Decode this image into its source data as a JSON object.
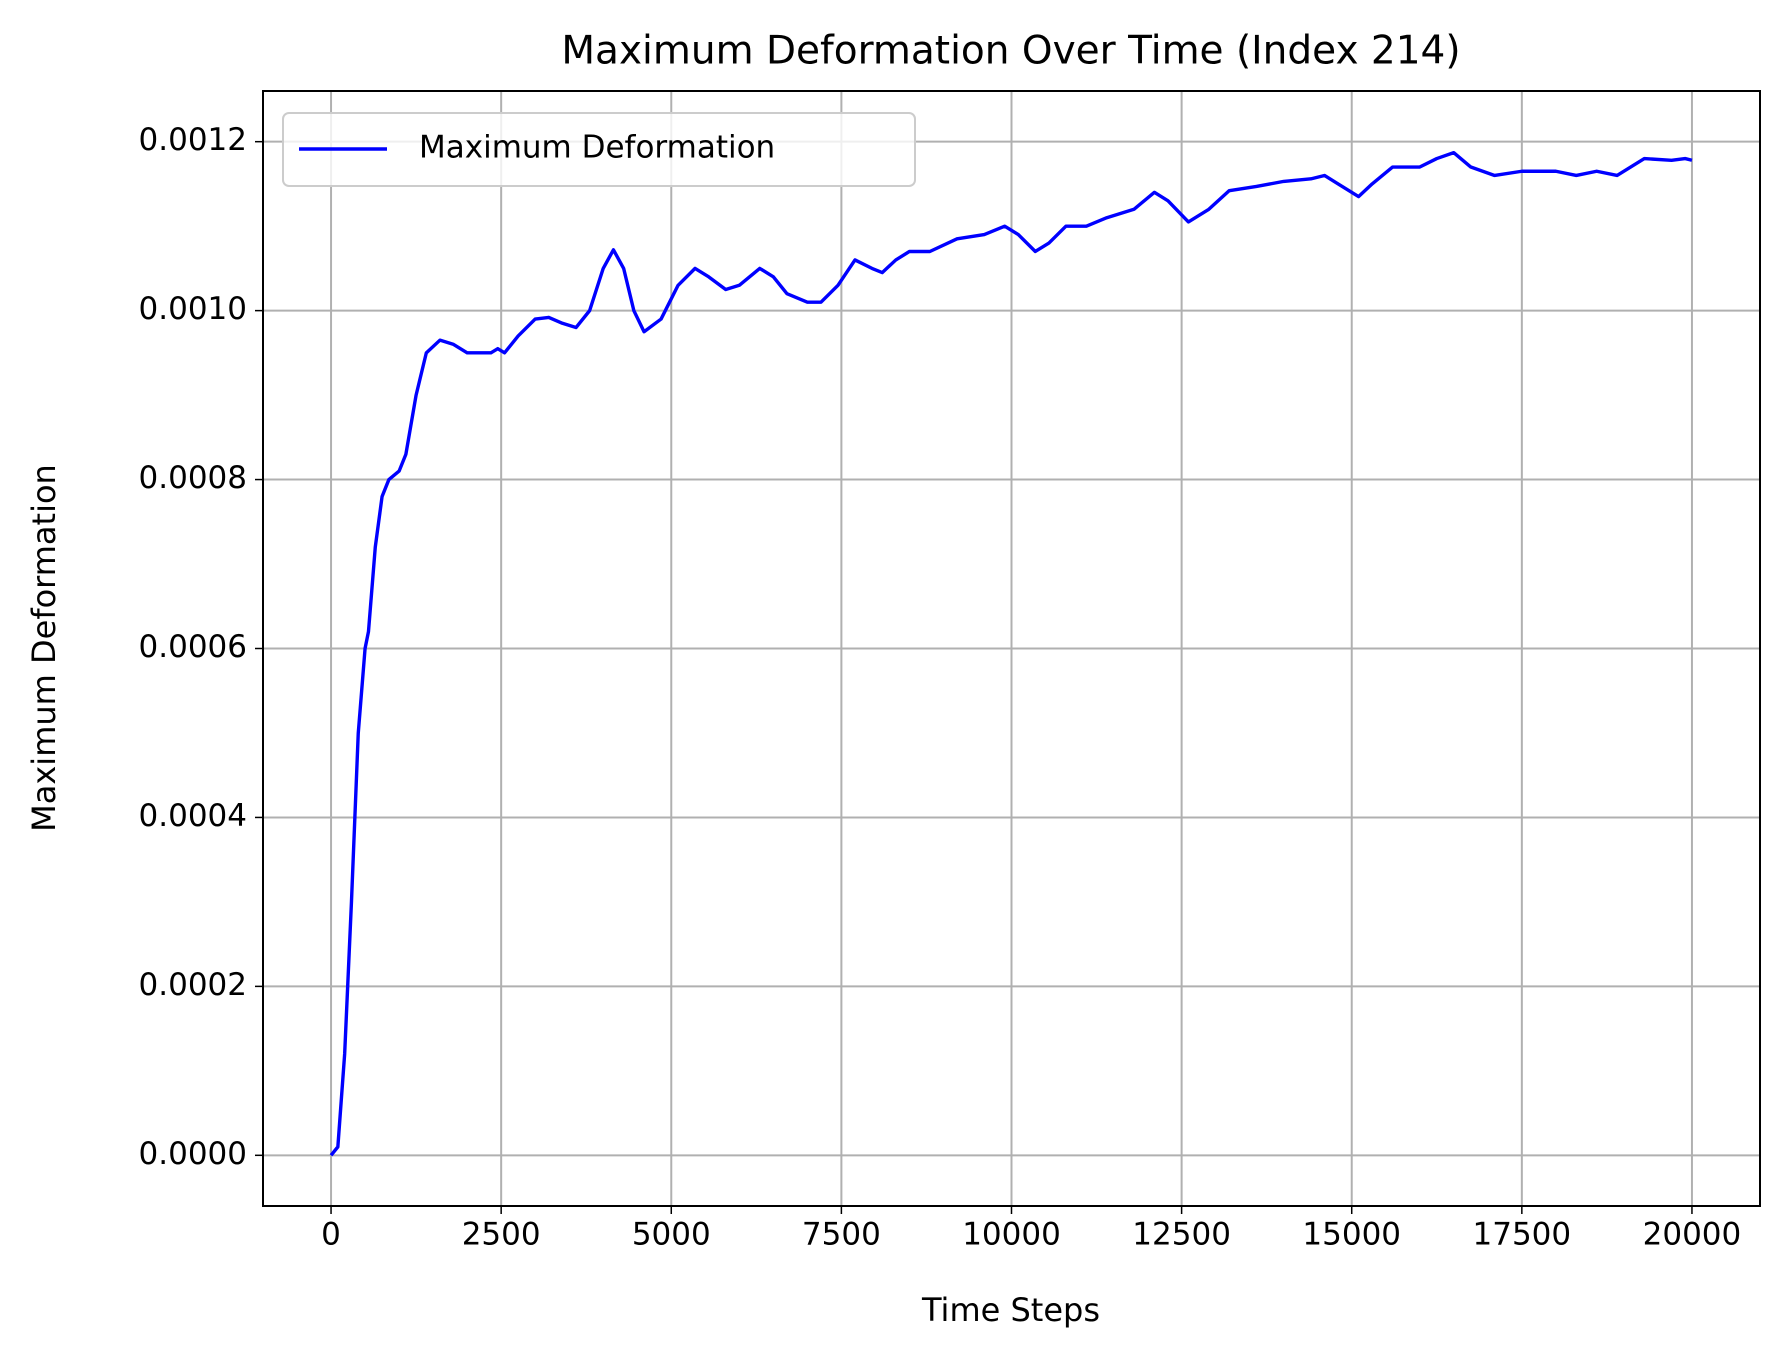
{
  "chart_data": {
    "type": "line",
    "title": "Maximum Deformation Over Time (Index 214)",
    "x_label": "Time Steps",
    "y_label": "Maximum Deformation",
    "x": [
      0,
      100,
      200,
      300,
      400,
      500,
      550,
      650,
      750,
      850,
      1000,
      1100,
      1250,
      1400,
      1600,
      1800,
      2000,
      2200,
      2350,
      2450,
      2550,
      2750,
      3000,
      3200,
      3400,
      3600,
      3800,
      4000,
      4150,
      4300,
      4450,
      4600,
      4850,
      5100,
      5350,
      5550,
      5800,
      6000,
      6300,
      6500,
      6700,
      7000,
      7200,
      7450,
      7700,
      7950,
      8100,
      8300,
      8500,
      8800,
      9200,
      9600,
      9900,
      10100,
      10350,
      10550,
      10800,
      11100,
      11400,
      11800,
      12100,
      12300,
      12600,
      12900,
      13200,
      13600,
      14000,
      14400,
      14600,
      14800,
      15100,
      15300,
      15600,
      16000,
      16250,
      16500,
      16750,
      17100,
      17500,
      18000,
      18300,
      18600,
      18900,
      19300,
      19700,
      19900,
      20000
    ],
    "series": [
      {
        "name": "Maximum Deformation",
        "color": "#0000ff",
        "values": [
          0,
          1e-05,
          0.00012,
          0.0003,
          0.0005,
          0.0006,
          0.00062,
          0.00072,
          0.00078,
          0.0008,
          0.00081,
          0.00083,
          0.0009,
          0.00095,
          0.000965,
          0.00096,
          0.00095,
          0.00095,
          0.00095,
          0.000955,
          0.00095,
          0.00097,
          0.00099,
          0.000992,
          0.000985,
          0.00098,
          0.001,
          0.00105,
          0.001072,
          0.00105,
          0.001,
          0.000975,
          0.00099,
          0.00103,
          0.00105,
          0.00104,
          0.001025,
          0.00103,
          0.00105,
          0.00104,
          0.00102,
          0.00101,
          0.00101,
          0.00103,
          0.00106,
          0.00105,
          0.001045,
          0.00106,
          0.00107,
          0.00107,
          0.001085,
          0.00109,
          0.0011,
          0.00109,
          0.00107,
          0.00108,
          0.0011,
          0.0011,
          0.00111,
          0.00112,
          0.00114,
          0.00113,
          0.001105,
          0.00112,
          0.001142,
          0.001147,
          0.001153,
          0.001156,
          0.00116,
          0.00115,
          0.001135,
          0.00115,
          0.00117,
          0.00117,
          0.00118,
          0.001187,
          0.00117,
          0.00116,
          0.001165,
          0.001165,
          0.00116,
          0.001165,
          0.00116,
          0.00118,
          0.001178,
          0.00118,
          0.001178
        ]
      }
    ],
    "xlim": [
      -1000,
      21000
    ],
    "ylim": [
      -6e-05,
      0.00126
    ],
    "xticks": [
      0,
      2500,
      5000,
      7500,
      10000,
      12500,
      15000,
      17500,
      20000
    ],
    "yticks": [
      {
        "value": 0,
        "label": "0.0000"
      },
      {
        "value": 0.0002,
        "label": "0.0002"
      },
      {
        "value": 0.0004,
        "label": "0.0004"
      },
      {
        "value": 0.0006,
        "label": "0.0006"
      },
      {
        "value": 0.0008,
        "label": "0.0008"
      },
      {
        "value": 0.001,
        "label": "0.0010"
      },
      {
        "value": 0.0012,
        "label": "0.0012"
      }
    ],
    "grid": true,
    "legend": "upper-left"
  }
}
